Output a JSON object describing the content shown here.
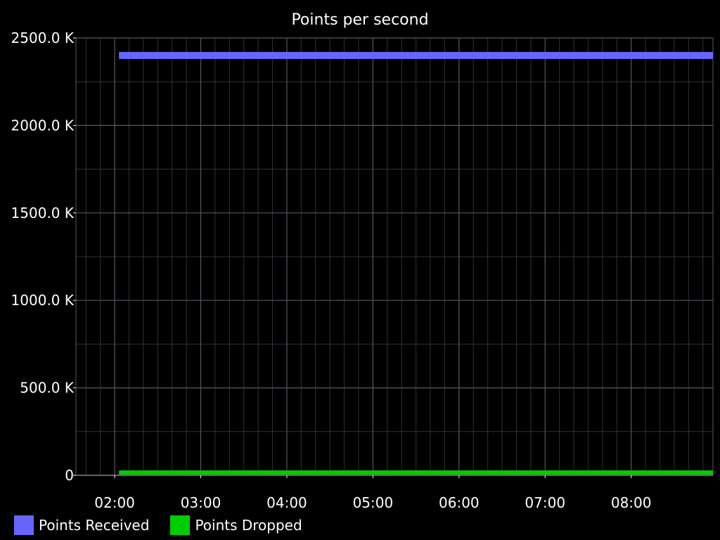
{
  "chart_data": {
    "type": "line",
    "title": "Points per second",
    "xlabel": "",
    "ylabel": "",
    "x_tick_labels": [
      "02:00",
      "03:00",
      "04:00",
      "05:00",
      "06:00",
      "07:00",
      "08:00"
    ],
    "y_tick_labels": [
      "0",
      "500.0 K",
      "1000.0 K",
      "1500.0 K",
      "2000.0 K",
      "2500.0 K"
    ],
    "y_ticks": [
      0,
      500000,
      1000000,
      1500000,
      2000000,
      2500000
    ],
    "ylim": [
      0,
      2500000
    ],
    "xlim_hours": [
      1.55,
      8.95
    ],
    "x_range_shown": [
      "01:33",
      "08:57"
    ],
    "grid": true,
    "legend_position": "bottom-left",
    "background_color": "#000000",
    "grid_color": "#5e5464",
    "series": [
      {
        "name": "Points Received",
        "color": "#6666ff",
        "x_hours": [
          2.05,
          8.95
        ],
        "values": [
          2400000,
          2400000
        ]
      },
      {
        "name": "Points Dropped",
        "color": "#00cc00",
        "x_hours": [
          2.05,
          8.95
        ],
        "values": [
          0,
          0
        ]
      }
    ]
  }
}
